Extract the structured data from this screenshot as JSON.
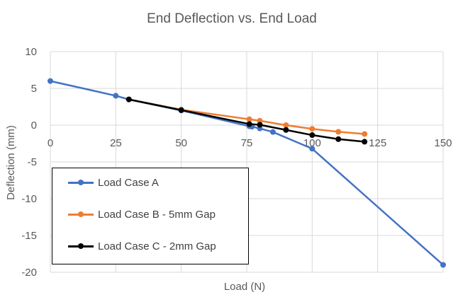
{
  "chart_data": {
    "type": "line",
    "title": "End Deflection vs. End Load",
    "xlabel": "Load (N)",
    "ylabel": "Deflection (mm)",
    "xlim": [
      0,
      150
    ],
    "ylim": [
      -20,
      10
    ],
    "xticks": [
      "0",
      "25",
      "50",
      "75",
      "100",
      "125",
      "150"
    ],
    "yticks": [
      "10",
      "5",
      "0",
      "-5",
      "-10",
      "-15",
      "-20"
    ],
    "grid": true,
    "legend_position": "bottom-left",
    "series": [
      {
        "name": "Load Case A",
        "color": "#4472C4",
        "x": [
          0,
          25,
          30,
          50,
          76,
          77,
          80,
          85,
          100,
          150
        ],
        "y": [
          6,
          4,
          3.5,
          2,
          -0.15,
          -0.2,
          -0.45,
          -0.93,
          -3.2,
          -19
        ]
      },
      {
        "name": "Load Case B - 5mm Gap",
        "color": "#ED7D31",
        "x": [
          30,
          50,
          76,
          80,
          90,
          100,
          110,
          120
        ],
        "y": [
          3.5,
          2.1,
          0.8,
          0.6,
          0,
          -0.5,
          -0.9,
          -1.2
        ]
      },
      {
        "name": "Load Case C - 2mm Gap",
        "color": "#000000",
        "x": [
          30,
          50,
          76,
          80,
          90,
          100,
          110,
          120
        ],
        "y": [
          3.5,
          2.05,
          0.15,
          0.05,
          -0.65,
          -1.35,
          -1.9,
          -2.25
        ]
      }
    ]
  }
}
